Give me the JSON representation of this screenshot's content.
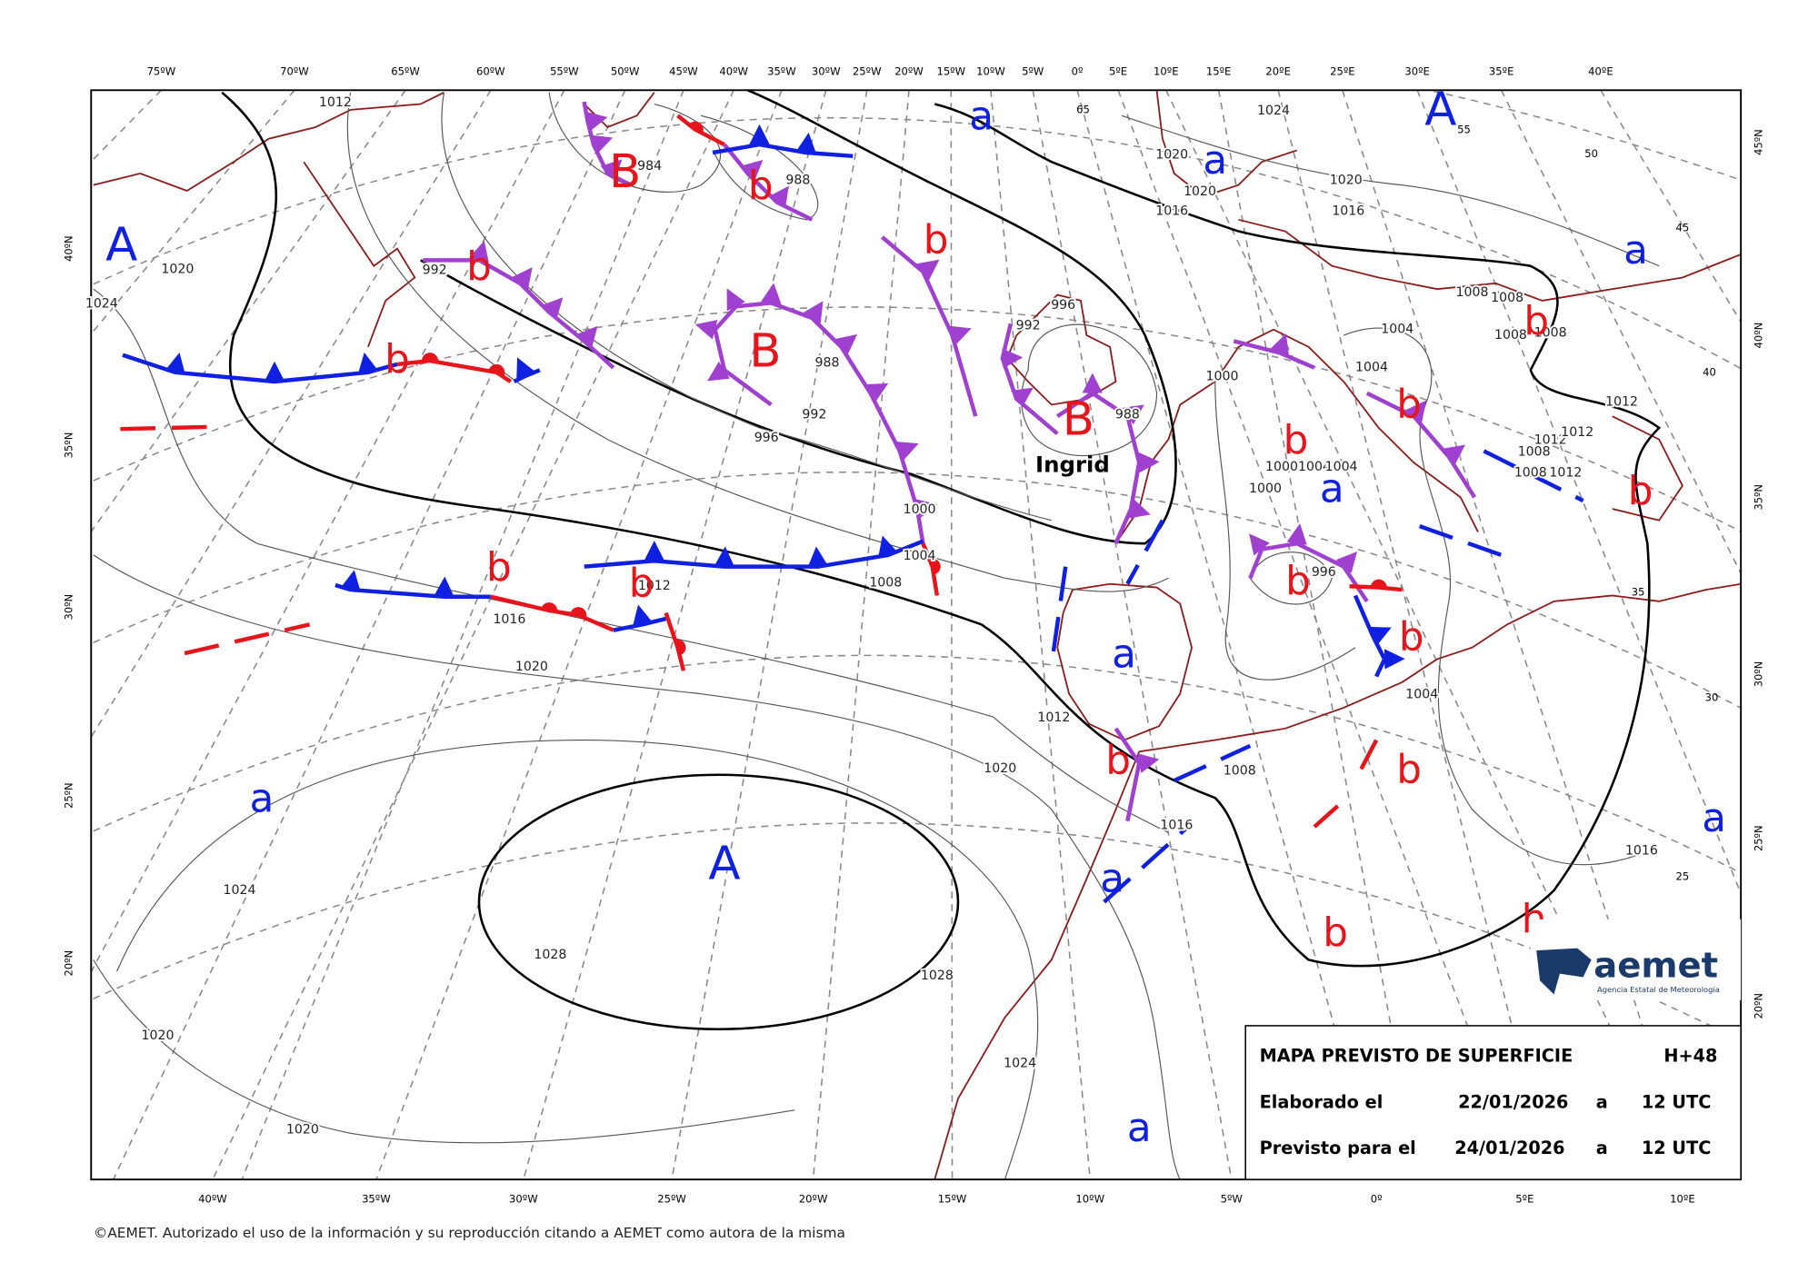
{
  "top_lon_labels": [
    "75ºW",
    "70ºW",
    "65ºW",
    "60ºW",
    "55ºW",
    "50ºW",
    "45ºW",
    "40ºW",
    "35ºW",
    "30ºW",
    "25ºW",
    "20ºW",
    "15ºW",
    "10ºW",
    "5ºW",
    "0º",
    "5ºE",
    "10ºE",
    "15ºE",
    "20ºE",
    "25ºE",
    "30ºE",
    "35ºE",
    "40ºE"
  ],
  "bottom_lon_labels": [
    "40ºW",
    "35ºW",
    "30ºW",
    "25ºW",
    "20ºW",
    "15ºW",
    "10ºW",
    "5ºW",
    "0º",
    "5ºE",
    "10ºE"
  ],
  "left_lat_labels": [
    "40ºN",
    "35ºN",
    "30ºN",
    "25ºN",
    "20ºN"
  ],
  "right_lat_labels": [
    "45ºN",
    "40ºN",
    "35ºN",
    "30ºN",
    "25ºN",
    "20ºN"
  ],
  "grid_labels": [
    "65",
    "55",
    "50",
    "45",
    "40",
    "35",
    "30",
    "25"
  ],
  "pressure_centers": [
    "A",
    "B",
    "b",
    "a",
    "a",
    "A",
    "a",
    "b",
    "b",
    "B",
    "b",
    "B",
    "b",
    "b",
    "b",
    "a",
    "b",
    "b",
    "b",
    "b",
    "a",
    "b",
    "b",
    "b",
    "a",
    "A",
    "a",
    "a",
    "b",
    "h",
    "a"
  ],
  "isobar_labels": [
    "1012",
    "1020",
    "1024",
    "984",
    "988",
    "992",
    "988",
    "992",
    "996",
    "1000",
    "1004",
    "1008",
    "1012",
    "1016",
    "1020",
    "992",
    "996",
    "988",
    "1020",
    "1020",
    "1016",
    "1020",
    "1016",
    "1024",
    "1008",
    "1008",
    "1008",
    "1008",
    "1004",
    "1004",
    "1000",
    "1000",
    "1004",
    "1004",
    "1000",
    "996",
    "1012",
    "1012",
    "1012",
    "1008",
    "1008",
    "1012",
    "1004",
    "1012",
    "1020",
    "1008",
    "1016",
    "1016",
    "1024",
    "1028",
    "1028",
    "1020",
    "1024",
    "1020"
  ],
  "storm_name": "Ingrid",
  "info_box": {
    "title": "MAPA PREVISTO DE SUPERFICIE",
    "lead_time": "H+48",
    "issued_label": "Elaborado el",
    "issued_date": "22/01/2026",
    "issued_at": "a",
    "issued_time": "12 UTC",
    "valid_label": "Previsto para el",
    "valid_date": "24/01/2026",
    "valid_at": "a",
    "valid_time": "12 UTC"
  },
  "logo": {
    "name": "aemet",
    "subtitle": "Agencia Estatal de Meteorología"
  },
  "footer": "©AEMET. Autorizado el uso de la información y su reproducción citando a AEMET como autora de la misma"
}
